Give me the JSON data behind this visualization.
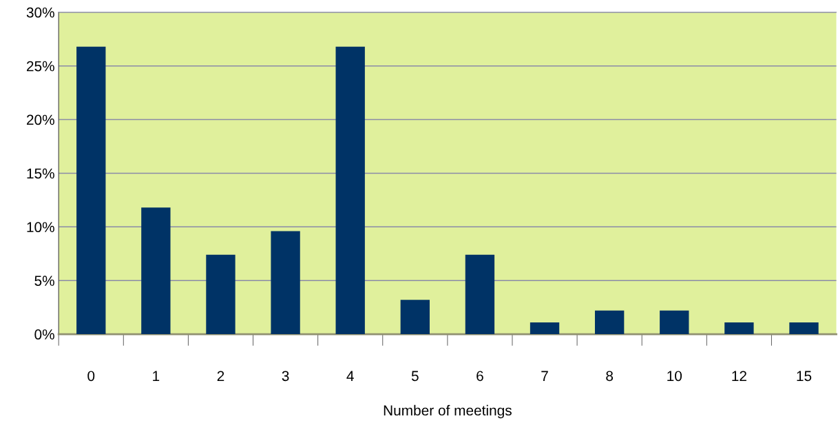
{
  "chart_data": {
    "type": "bar",
    "xlabel": "Number of meetings",
    "categories": [
      "0",
      "1",
      "2",
      "3",
      "4",
      "5",
      "6",
      "7",
      "8",
      "10",
      "12",
      "15"
    ],
    "values": [
      26.8,
      11.8,
      7.4,
      9.6,
      26.8,
      3.2,
      7.4,
      1.1,
      2.2,
      2.2,
      1.1,
      1.1
    ],
    "color": "#003366",
    "ylim": [
      0,
      30
    ],
    "yticks": [
      {
        "value": 0,
        "label": "0%"
      },
      {
        "value": 5,
        "label": "5%"
      },
      {
        "value": 10,
        "label": "10%"
      },
      {
        "value": 15,
        "label": "15%"
      },
      {
        "value": 20,
        "label": "20%"
      },
      {
        "value": 25,
        "label": "25%"
      },
      {
        "value": 30,
        "label": "30%"
      }
    ],
    "grid": "y"
  }
}
